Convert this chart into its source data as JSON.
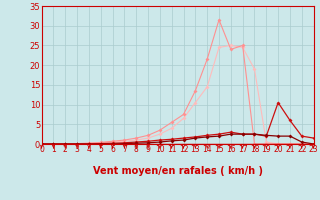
{
  "background_color": "#cce8ea",
  "grid_color": "#aaccce",
  "xlabel": "Vent moyen/en rafales ( km/h )",
  "xlim": [
    0,
    23
  ],
  "ylim": [
    0,
    35
  ],
  "yticks": [
    0,
    5,
    10,
    15,
    20,
    25,
    30,
    35
  ],
  "xticks": [
    0,
    1,
    2,
    3,
    4,
    5,
    6,
    7,
    8,
    9,
    10,
    11,
    12,
    13,
    14,
    15,
    16,
    17,
    18,
    19,
    20,
    21,
    22,
    23
  ],
  "x": [
    0,
    1,
    2,
    3,
    4,
    5,
    6,
    7,
    8,
    9,
    10,
    11,
    12,
    13,
    14,
    15,
    16,
    17,
    18,
    19,
    20,
    21,
    22,
    23
  ],
  "line1_y": [
    0.0,
    0.0,
    0.0,
    0.1,
    0.2,
    0.3,
    0.5,
    0.7,
    1.0,
    1.5,
    2.5,
    4.0,
    6.5,
    10.5,
    14.5,
    24.5,
    25.0,
    24.5,
    19.0,
    0.5,
    0.0,
    0.0,
    0.0,
    0.0
  ],
  "line2_y": [
    0.0,
    0.0,
    0.0,
    0.1,
    0.2,
    0.4,
    0.7,
    1.0,
    1.5,
    2.2,
    3.5,
    5.5,
    7.5,
    13.5,
    21.5,
    31.5,
    24.0,
    25.0,
    0.0,
    0.0,
    0.0,
    0.0,
    0.0,
    0.0
  ],
  "line3_y": [
    0.0,
    0.0,
    0.0,
    0.0,
    0.0,
    0.1,
    0.2,
    0.3,
    0.5,
    0.7,
    1.0,
    1.2,
    1.5,
    1.8,
    2.2,
    2.5,
    3.0,
    2.5,
    2.5,
    2.0,
    10.5,
    6.0,
    2.0,
    1.5
  ],
  "line4_y": [
    0.0,
    0.0,
    0.0,
    0.0,
    0.0,
    0.0,
    0.0,
    0.1,
    0.2,
    0.3,
    0.5,
    0.8,
    1.0,
    1.5,
    1.8,
    2.0,
    2.5,
    2.5,
    2.5,
    2.2,
    2.0,
    2.0,
    0.5,
    0.0
  ],
  "line1_color": "#ffbbbb",
  "line2_color": "#ff9090",
  "line3_color": "#cc1010",
  "line4_color": "#880000",
  "tick_color": "#cc0000",
  "spine_color": "#cc0000",
  "xlabel_color": "#cc0000",
  "xlabel_fontsize": 7,
  "tick_fontsize_x": 5.5,
  "tick_fontsize_y": 6
}
